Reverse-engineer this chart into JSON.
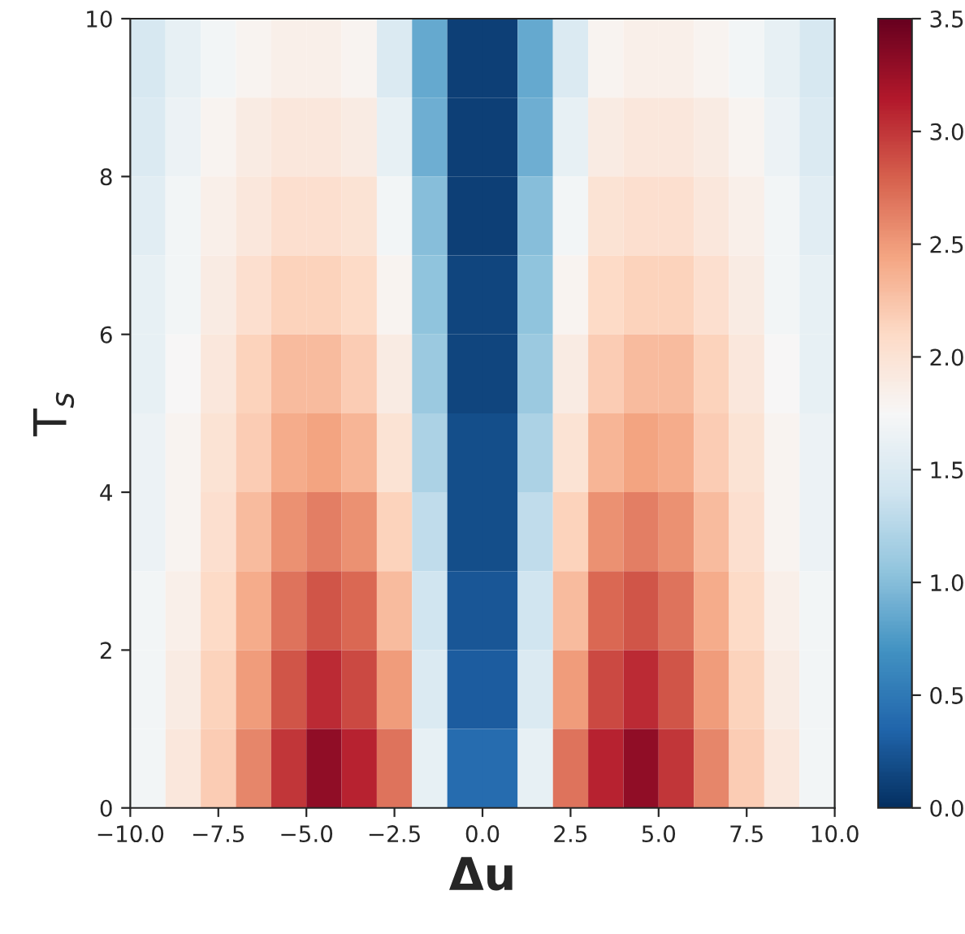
{
  "chart_data": {
    "type": "heatmap",
    "xlabel": "Δu",
    "ylabel": "T$_{s}$",
    "xlim": [
      -10,
      10
    ],
    "ylim": [
      0,
      10
    ],
    "xticks": [
      {
        "value": -10,
        "label": "−10.0"
      },
      {
        "value": -7.5,
        "label": "−7.5"
      },
      {
        "value": -5,
        "label": "−5.0"
      },
      {
        "value": -2.5,
        "label": "−2.5"
      },
      {
        "value": 0,
        "label": "0.0"
      },
      {
        "value": 2.5,
        "label": "2.5"
      },
      {
        "value": 5,
        "label": "5.0"
      },
      {
        "value": 7.5,
        "label": "7.5"
      },
      {
        "value": 10,
        "label": "10.0"
      }
    ],
    "yticks": [
      0,
      2,
      4,
      6,
      8,
      10
    ],
    "clim": [
      0,
      3.5
    ],
    "cticks": [
      {
        "value": 0,
        "label": "0.0"
      },
      {
        "value": 0.5,
        "label": "0.5"
      },
      {
        "value": 1,
        "label": "1.0"
      },
      {
        "value": 1.5,
        "label": "1.5"
      },
      {
        "value": 2,
        "label": "2.0"
      },
      {
        "value": 2.5,
        "label": "2.5"
      },
      {
        "value": 3,
        "label": "3.0"
      },
      {
        "value": 3.5,
        "label": "3.5"
      }
    ],
    "cells": [
      [
        1.45,
        1.6,
        1.7,
        1.8,
        1.85,
        1.85,
        1.8,
        1.5,
        0.85,
        0.1,
        0.1,
        0.85,
        1.5,
        1.8,
        1.85,
        1.85,
        1.8,
        1.7,
        1.6,
        1.45
      ],
      [
        1.5,
        1.65,
        1.8,
        1.9,
        1.95,
        1.95,
        1.9,
        1.6,
        0.9,
        0.1,
        0.1,
        0.9,
        1.6,
        1.9,
        1.95,
        1.95,
        1.9,
        1.8,
        1.65,
        1.5
      ],
      [
        1.55,
        1.7,
        1.85,
        1.95,
        2.05,
        2.05,
        2.0,
        1.7,
        1.0,
        0.1,
        0.1,
        1.0,
        1.7,
        2.0,
        2.05,
        2.05,
        1.95,
        1.85,
        1.7,
        1.55
      ],
      [
        1.6,
        1.7,
        1.9,
        2.05,
        2.15,
        2.15,
        2.1,
        1.8,
        1.05,
        0.15,
        0.15,
        1.05,
        1.8,
        2.1,
        2.15,
        2.15,
        2.05,
        1.9,
        1.7,
        1.6
      ],
      [
        1.6,
        1.75,
        1.95,
        2.15,
        2.3,
        2.3,
        2.2,
        1.9,
        1.1,
        0.15,
        0.15,
        1.1,
        1.9,
        2.2,
        2.3,
        2.3,
        2.15,
        1.95,
        1.75,
        1.6
      ],
      [
        1.65,
        1.8,
        2.0,
        2.2,
        2.4,
        2.45,
        2.35,
        2.0,
        1.2,
        0.2,
        0.2,
        1.2,
        2.0,
        2.35,
        2.45,
        2.4,
        2.2,
        2.0,
        1.8,
        1.65
      ],
      [
        1.65,
        1.8,
        2.05,
        2.3,
        2.55,
        2.65,
        2.55,
        2.15,
        1.3,
        0.2,
        0.2,
        1.3,
        2.15,
        2.55,
        2.65,
        2.55,
        2.3,
        2.05,
        1.8,
        1.65
      ],
      [
        1.7,
        1.85,
        2.1,
        2.4,
        2.7,
        2.85,
        2.75,
        2.3,
        1.4,
        0.25,
        0.25,
        1.4,
        2.3,
        2.75,
        2.85,
        2.7,
        2.4,
        2.1,
        1.85,
        1.7
      ],
      [
        1.7,
        1.9,
        2.15,
        2.5,
        2.85,
        3.05,
        2.9,
        2.5,
        1.5,
        0.3,
        0.3,
        1.5,
        2.5,
        2.9,
        3.05,
        2.85,
        2.5,
        2.15,
        1.9,
        1.7
      ],
      [
        1.7,
        1.95,
        2.2,
        2.6,
        3.0,
        3.3,
        3.1,
        2.7,
        1.6,
        0.4,
        0.4,
        1.6,
        2.7,
        3.1,
        3.3,
        3.0,
        2.6,
        2.2,
        1.95,
        1.7
      ]
    ]
  }
}
